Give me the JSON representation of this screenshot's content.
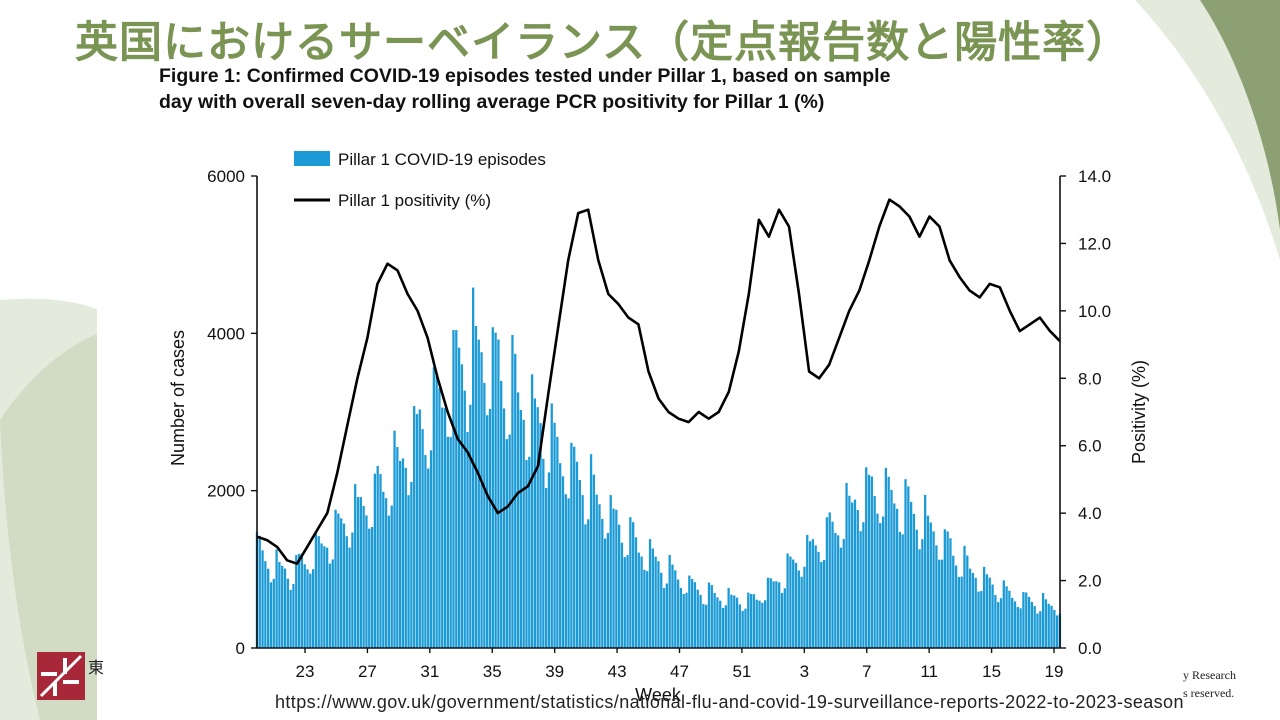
{
  "slide": {
    "title": "英国におけるサーベイランス（定点報告数と陽性率）",
    "figure_caption_line1": "Figure 1: Confirmed COVID-19 episodes tested under Pillar 1, based on sample",
    "figure_caption_line2": "day with overall seven-day rolling average PCR positivity for Pillar 1 (%)",
    "source_url": "https://www.gov.uk/government/statistics/national-flu-and-covid-19-surveillance-reports-2022-to-2023-season",
    "footer_note_1": "y Research",
    "footer_note_2": "s reserved.",
    "logo_text": "東"
  },
  "colors": {
    "title": "#7a9454",
    "bars": "#1b9ad6",
    "line": "#000000",
    "deco_green": "#8da074",
    "deco_light": "#e4eadc"
  },
  "chart_data": {
    "type": "bar",
    "xlabel": "Week",
    "ylabel_left": "Number of cases",
    "ylabel_right": "Positivity (%)",
    "ylim_left": [
      0,
      6000
    ],
    "ylim_right": [
      0,
      14
    ],
    "left_ticks": [
      "0",
      "2000",
      "4000",
      "6000"
    ],
    "right_ticks": [
      "0.0",
      "2.0",
      "4.0",
      "6.0",
      "8.0",
      "10.0",
      "12.0",
      "14.0"
    ],
    "x_ticks": [
      "23",
      "27",
      "31",
      "35",
      "39",
      "43",
      "47",
      "51",
      "3",
      "7",
      "11",
      "15",
      "19"
    ],
    "legend": [
      "Pillar 1 COVID-19 episodes",
      "Pillar 1 positivity (%)"
    ],
    "legend_position": "top-left",
    "grid": false,
    "days": 287,
    "bar_anchors": [
      [
        0,
        1250
      ],
      [
        6,
        1050
      ],
      [
        12,
        960
      ],
      [
        18,
        1150
      ],
      [
        25,
        1350
      ],
      [
        35,
        1750
      ],
      [
        42,
        1950
      ],
      [
        50,
        2300
      ],
      [
        58,
        2750
      ],
      [
        65,
        3150
      ],
      [
        72,
        3600
      ],
      [
        80,
        3800
      ],
      [
        88,
        3450
      ],
      [
        96,
        3050
      ],
      [
        104,
        2650
      ],
      [
        112,
        2300
      ],
      [
        120,
        1950
      ],
      [
        128,
        1600
      ],
      [
        136,
        1300
      ],
      [
        144,
        1050
      ],
      [
        152,
        850
      ],
      [
        160,
        700
      ],
      [
        168,
        640
      ],
      [
        176,
        600
      ],
      [
        184,
        820
      ],
      [
        195,
        1200
      ],
      [
        205,
        1500
      ],
      [
        215,
        1950
      ],
      [
        222,
        2000
      ],
      [
        230,
        1850
      ],
      [
        238,
        1600
      ],
      [
        246,
        1300
      ],
      [
        254,
        1000
      ],
      [
        262,
        800
      ],
      [
        270,
        650
      ],
      [
        278,
        580
      ],
      [
        286,
        520
      ]
    ],
    "line_values": [
      3.3,
      3.2,
      3.0,
      2.6,
      2.5,
      3.0,
      3.5,
      4.0,
      5.2,
      6.6,
      8.0,
      9.2,
      10.8,
      11.4,
      11.2,
      10.5,
      10.0,
      9.2,
      8.0,
      7.0,
      6.2,
      5.8,
      5.2,
      4.5,
      4.0,
      4.2,
      4.6,
      4.8,
      5.4,
      7.5,
      9.5,
      11.5,
      12.9,
      13.0,
      11.5,
      10.5,
      10.2,
      9.8,
      9.6,
      8.2,
      7.4,
      7.0,
      6.8,
      6.7,
      7.0,
      6.8,
      7.0,
      7.6,
      8.8,
      10.5,
      12.7,
      12.2,
      13.0,
      12.5,
      10.5,
      8.2,
      8.0,
      8.4,
      9.2,
      10.0,
      10.6,
      11.5,
      12.5,
      13.3,
      13.1,
      12.8,
      12.2,
      12.8,
      12.5,
      11.5,
      11.0,
      10.6,
      10.4,
      10.8,
      10.7,
      10.0,
      9.4,
      9.6,
      9.8,
      9.4,
      9.1
    ]
  }
}
